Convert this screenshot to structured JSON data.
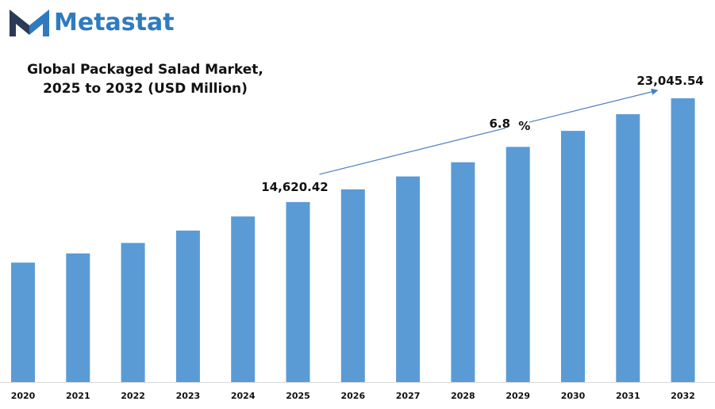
{
  "brand": {
    "name": "Metastat",
    "logo_icon": "metastat-m-logo",
    "color_dark": "#2b3a55",
    "color_blue": "#2f7bbf"
  },
  "chart_data": {
    "type": "bar",
    "title_line1": "Global Packaged Salad Market,",
    "title_line2": "2025 to 2032 (USD Million)",
    "xlabel": "",
    "ylabel": "",
    "categories": [
      "2020",
      "2021",
      "2022",
      "2023",
      "2024",
      "2025",
      "2026",
      "2027",
      "2028",
      "2029",
      "2030",
      "2031",
      "2032"
    ],
    "series": [
      {
        "values": [
          9700,
          10450,
          11300,
          12300,
          13450,
          14620.42,
          15650,
          16700,
          17850,
          19100,
          20400,
          21750,
          23045.54
        ]
      }
    ],
    "ylim": [
      0,
      23045.54
    ],
    "grid": false,
    "legend": "none",
    "bar_color": "#5b9bd5",
    "annotations": {
      "start_label": "14,620.42",
      "end_label": "23,045.54",
      "cagr_value": "6.8",
      "cagr_unit": "%",
      "arrow_color": "#4a7fc1"
    }
  }
}
